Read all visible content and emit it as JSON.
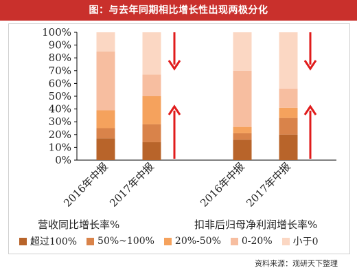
{
  "title": "图：与去年同期相比增长性出现两极分化",
  "chart_data": {
    "type": "bar",
    "stacked": true,
    "percent": true,
    "y_ticks": [
      "0%",
      "10%",
      "20%",
      "30%",
      "40%",
      "50%",
      "60%",
      "70%",
      "80%",
      "90%",
      "100%"
    ],
    "ylim": [
      0,
      100
    ],
    "groups": [
      {
        "label": "营收同比增长率%",
        "categories": [
          "2016年中报",
          "2017年中报"
        ]
      },
      {
        "label": "扣非后归母净利润增长率%",
        "categories": [
          "2016年中报",
          "2017年中报"
        ]
      }
    ],
    "categories": [
      "2016年中报",
      "2017年中报",
      "2016年中报",
      "2017年中报"
    ],
    "series": [
      {
        "name": "超过100%",
        "color": "#b8642a",
        "values": [
          17,
          14,
          16,
          20
        ]
      },
      {
        "name": "50%~100%",
        "color": "#d9834a",
        "values": [
          8,
          14,
          5,
          13
        ]
      },
      {
        "name": "20%-50%",
        "color": "#f5a25d",
        "values": [
          14,
          22,
          5,
          8
        ]
      },
      {
        "name": "0-20%",
        "color": "#f7bea0",
        "values": [
          46,
          17,
          44,
          15
        ]
      },
      {
        "name": "小于0",
        "color": "#fbd7c3",
        "values": [
          15,
          33,
          30,
          44
        ]
      }
    ],
    "annotations": [
      {
        "bar": 1,
        "direction": "down",
        "color": "#e01b1b"
      },
      {
        "bar": 1,
        "direction": "up",
        "color": "#e01b1b"
      },
      {
        "bar": 3,
        "direction": "down",
        "color": "#e01b1b"
      },
      {
        "bar": 3,
        "direction": "up",
        "color": "#e01b1b"
      }
    ]
  },
  "source": "资料来源：观研天下整理"
}
